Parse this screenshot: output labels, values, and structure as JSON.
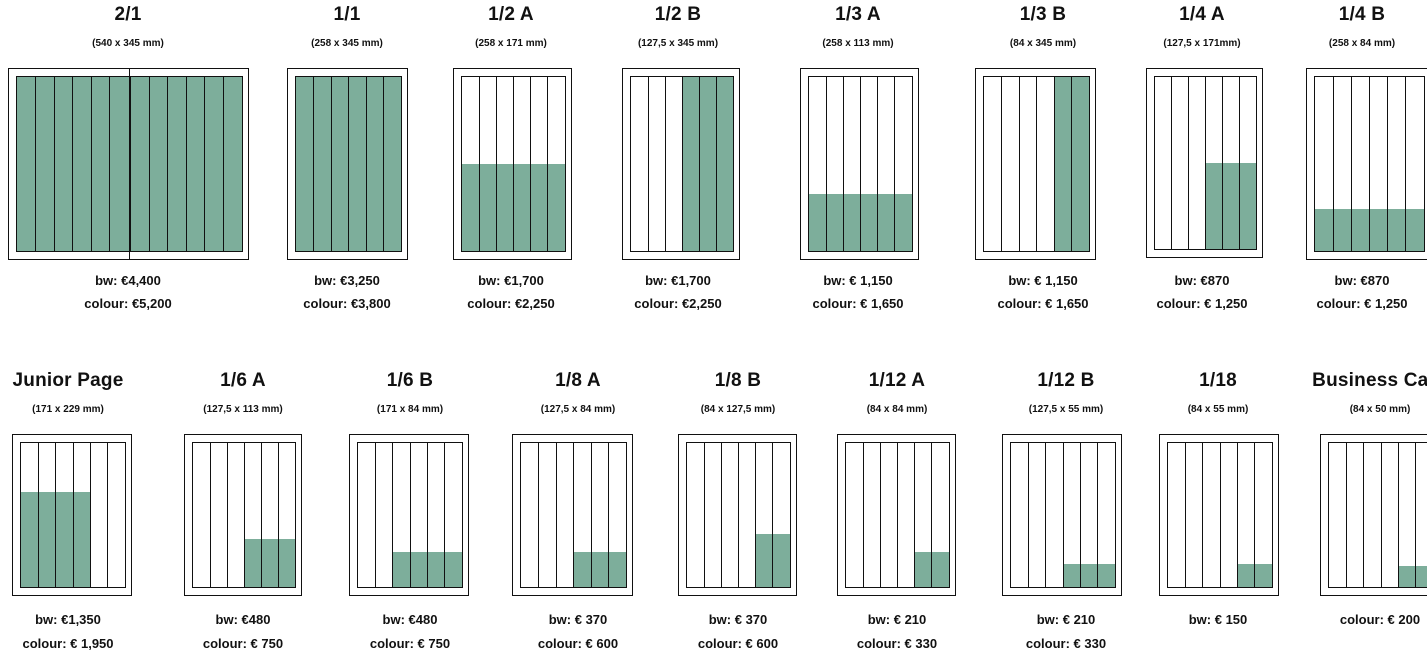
{
  "ad_sizes": [
    {
      "id": "2-1",
      "title": "2/1",
      "dims": "(540 x 345 mm)",
      "bw": "bw: €4,400",
      "colour": "colour: €5,200",
      "fill": {
        "from": 0,
        "to": 6,
        "height": 1
      },
      "spread": true
    },
    {
      "id": "1-1",
      "title": "1/1",
      "dims": "(258 x 345 mm)",
      "bw": "bw: €3,250",
      "colour": "colour: €3,800",
      "fill": {
        "from": 0,
        "to": 6,
        "height": 1
      }
    },
    {
      "id": "1-2-a",
      "title": "1/2 A",
      "dims": "(258 x 171 mm)",
      "bw": "bw: €1,700",
      "colour": "colour: €2,250",
      "fill": {
        "from": 0,
        "to": 6,
        "height": 0.5
      }
    },
    {
      "id": "1-2-b",
      "title": "1/2 B",
      "dims": "(127,5 x 345 mm)",
      "bw": "bw: €1,700",
      "colour": "colour: €2,250",
      "fill": {
        "from": 3,
        "to": 6,
        "height": 1
      }
    },
    {
      "id": "1-3-a",
      "title": "1/3 A",
      "dims": "(258 x 113 mm)",
      "bw": "bw: € 1,150",
      "colour": "colour: € 1,650",
      "fill": {
        "from": 0,
        "to": 6,
        "height": 0.33
      }
    },
    {
      "id": "1-3-b",
      "title": "1/3 B",
      "dims": "(84 x 345 mm)",
      "bw": "bw: € 1,150",
      "colour": "colour: € 1,650",
      "fill": {
        "from": 4,
        "to": 6,
        "height": 1
      }
    },
    {
      "id": "1-4-a",
      "title": "1/4 A",
      "dims": "(127,5 x 171mm)",
      "bw": "bw: €870",
      "colour": "colour: € 1,250",
      "fill": {
        "from": 3,
        "to": 6,
        "height": 0.5
      }
    },
    {
      "id": "1-4-b",
      "title": "1/4 B",
      "dims": "(258 x 84 mm)",
      "bw": "bw: €870",
      "colour": "colour: € 1,250",
      "fill": {
        "from": 0,
        "to": 6,
        "height": 0.24
      }
    },
    {
      "id": "junior-page",
      "title": "Junior Page",
      "dims": "(171 x 229 mm)",
      "bw": "bw: €1,350",
      "colour": "colour: € 1,950",
      "fill": {
        "from": 0,
        "to": 4,
        "height": 0.66
      }
    },
    {
      "id": "1-6-a",
      "title": "1/6 A",
      "dims": "(127,5 x 113 mm)",
      "bw": "bw: €480",
      "colour": "colour: € 750",
      "fill": {
        "from": 3,
        "to": 6,
        "height": 0.33
      }
    },
    {
      "id": "1-6-b",
      "title": "1/6 B",
      "dims": "(171 x 84 mm)",
      "bw": "bw: €480",
      "colour": "colour: € 750",
      "fill": {
        "from": 2,
        "to": 6,
        "height": 0.24
      }
    },
    {
      "id": "1-8-a",
      "title": "1/8 A",
      "dims": "(127,5 x 84 mm)",
      "bw": "bw: € 370",
      "colour": "colour: € 600",
      "fill": {
        "from": 3,
        "to": 6,
        "height": 0.24
      }
    },
    {
      "id": "1-8-b",
      "title": "1/8 B",
      "dims": "(84 x 127,5 mm)",
      "bw": "bw: € 370",
      "colour": "colour: € 600",
      "fill": {
        "from": 4,
        "to": 6,
        "height": 0.37
      }
    },
    {
      "id": "1-12-a",
      "title": "1/12 A",
      "dims": "(84 x 84 mm)",
      "bw": "bw: € 210",
      "colour": "colour: € 330",
      "fill": {
        "from": 4,
        "to": 6,
        "height": 0.24
      }
    },
    {
      "id": "1-12-b",
      "title": "1/12 B",
      "dims": "(127,5 x 55 mm)",
      "bw": "bw: € 210",
      "colour": "colour: € 330",
      "fill": {
        "from": 3,
        "to": 6,
        "height": 0.16
      }
    },
    {
      "id": "1-18",
      "title": "1/18",
      "dims": "(84 x 55 mm)",
      "bw": "bw: € 150",
      "colour": "",
      "fill": {
        "from": 4,
        "to": 6,
        "height": 0.16
      }
    },
    {
      "id": "business-card",
      "title": "Business Card",
      "dims": "(84 x 50 mm)",
      "bw": "",
      "colour": "colour: € 200",
      "fill": {
        "from": 4,
        "to": 6,
        "height": 0.145
      }
    }
  ],
  "colors": {
    "fill": "#7dae9b",
    "line": "#111111"
  }
}
